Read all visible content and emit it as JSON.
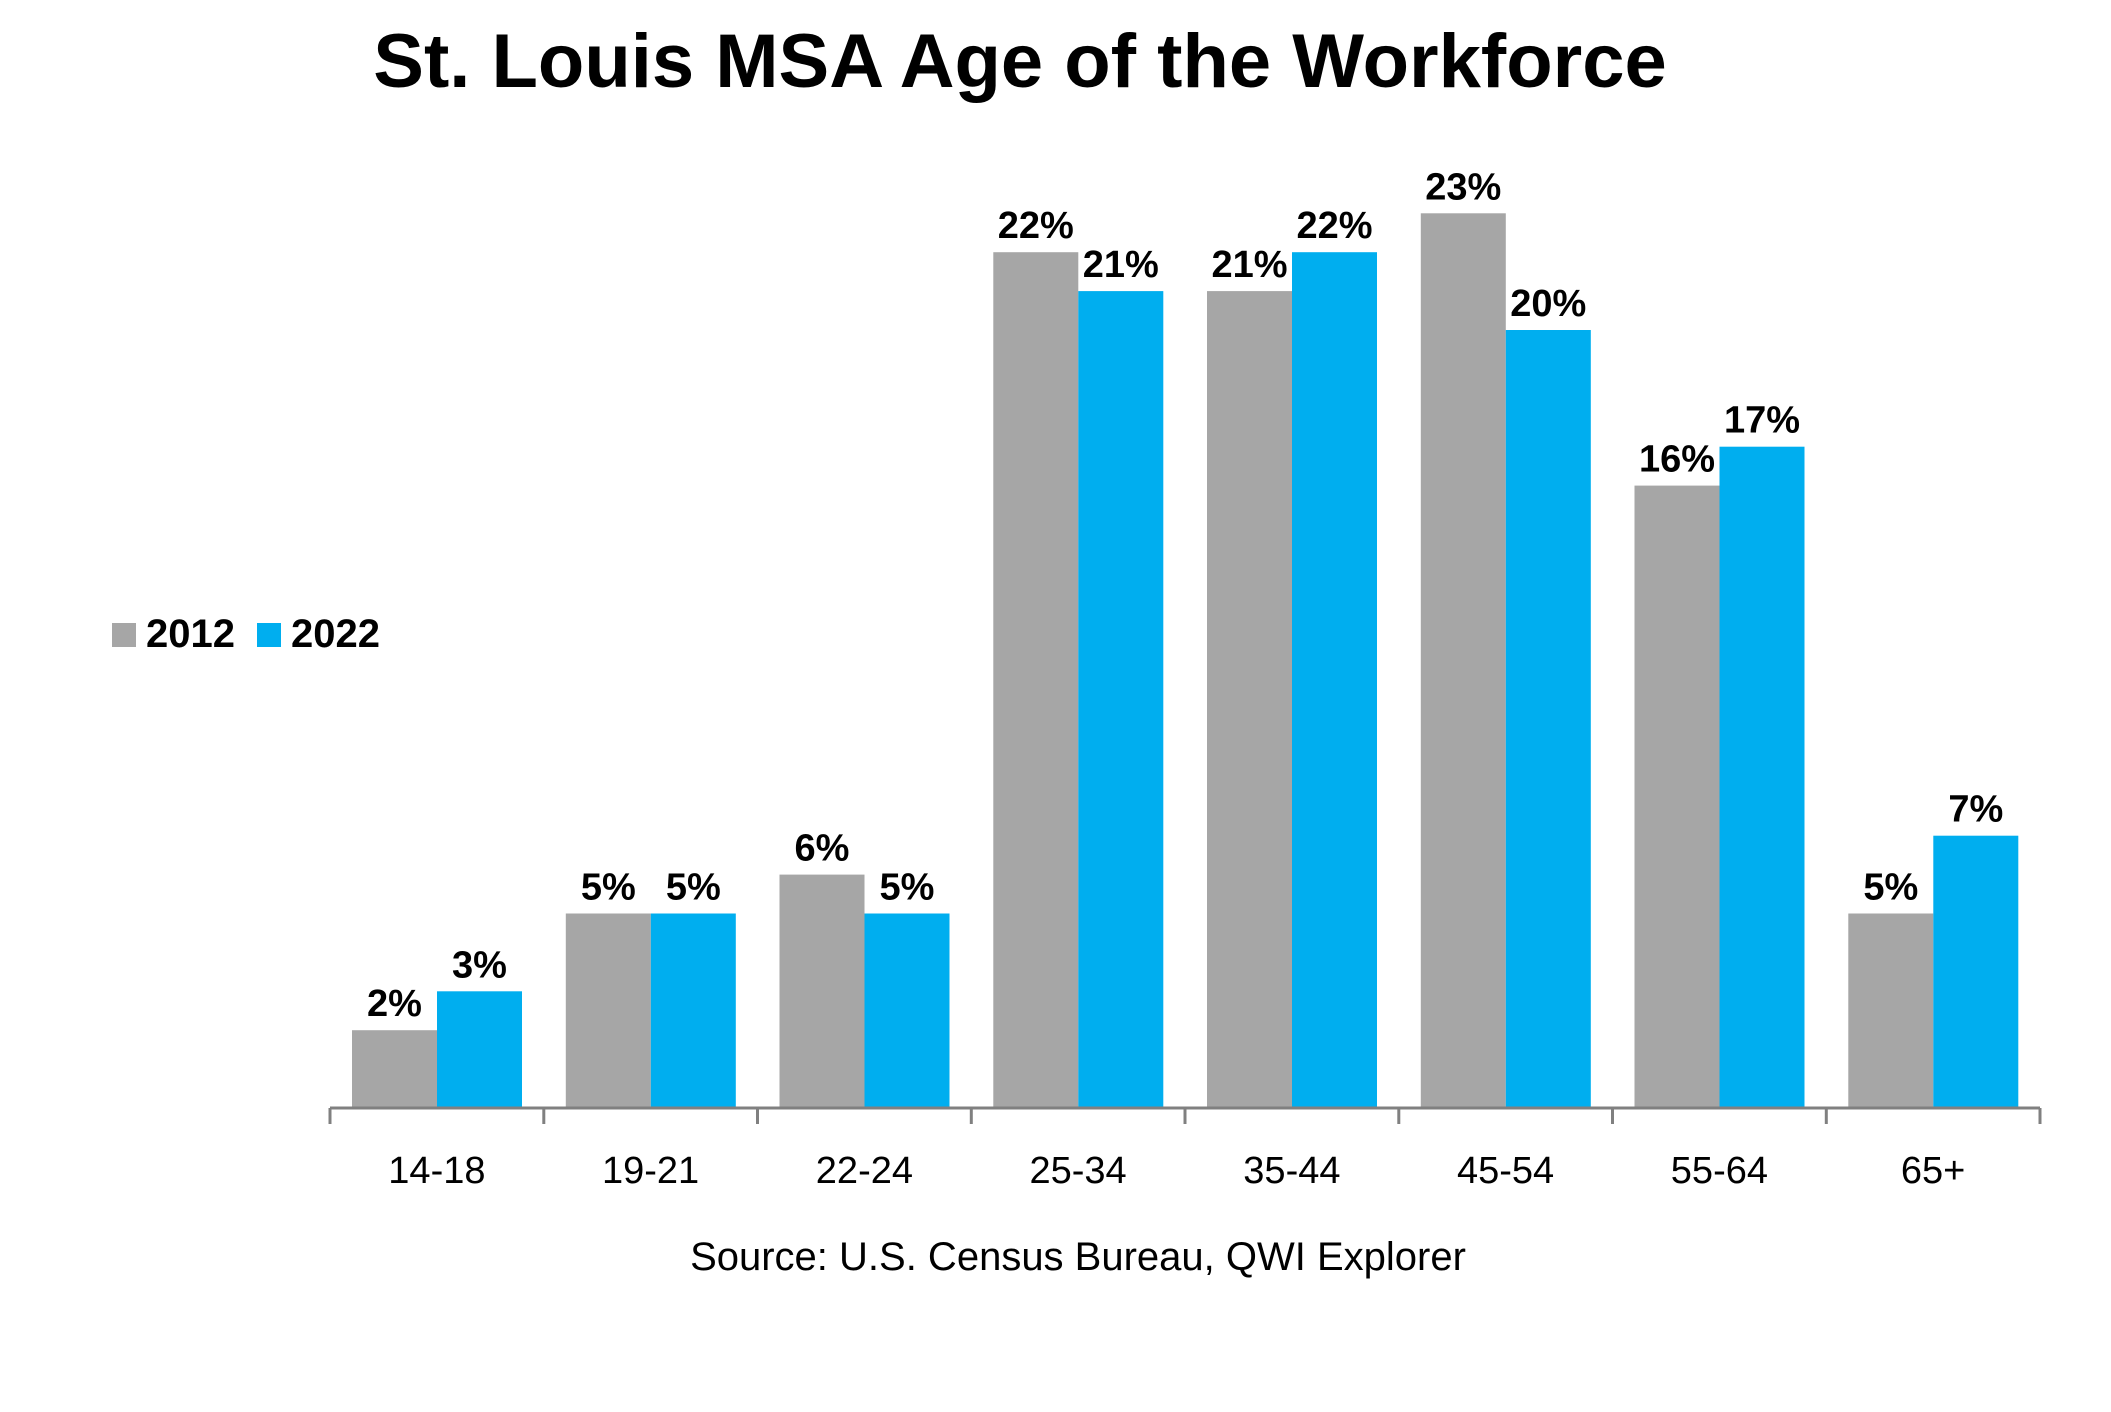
{
  "chart_data": {
    "type": "bar",
    "title": "St. Louis MSA Age of the Workforce",
    "xlabel": "",
    "ylabel": "",
    "categories": [
      "14-18",
      "19-21",
      "22-24",
      "25-34",
      "35-44",
      "45-54",
      "55-64",
      "65+"
    ],
    "series": [
      {
        "name": "2012",
        "color": "#a6a6a6",
        "values": [
          2,
          5,
          6,
          22,
          21,
          23,
          16,
          5
        ],
        "labels": [
          "2%",
          "5%",
          "6%",
          "22%",
          "21%",
          "23%",
          "16%",
          "5%"
        ]
      },
      {
        "name": "2022",
        "color": "#00aeef",
        "values": [
          3,
          5,
          5,
          21,
          22,
          20,
          17,
          7
        ],
        "labels": [
          "3%",
          "5%",
          "5%",
          "21%",
          "22%",
          "20%",
          "17%",
          "7%"
        ]
      }
    ],
    "ylim": [
      0,
      25
    ],
    "grid": false,
    "legend_position": "left",
    "source": "Source: U.S. Census Bureau, QWI Explorer"
  }
}
